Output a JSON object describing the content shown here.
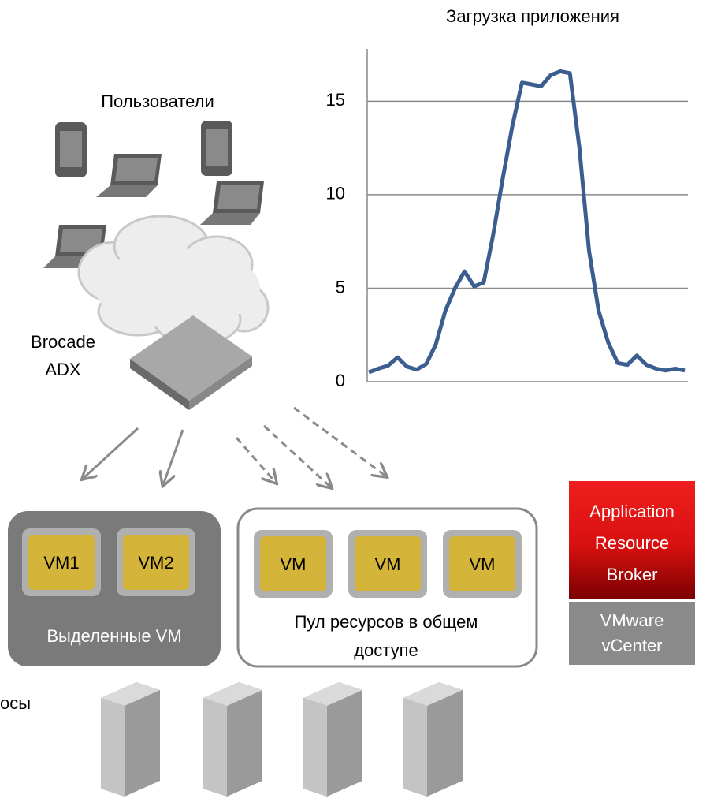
{
  "chart_data": {
    "type": "line",
    "title": "Загрузка приложения",
    "categories": [
      null,
      null,
      null,
      null,
      null,
      null,
      null,
      null,
      null,
      null,
      null,
      null,
      null,
      null,
      null,
      null,
      null,
      null,
      null,
      null,
      null,
      null,
      null,
      null,
      null,
      null,
      null,
      null,
      null,
      null,
      null,
      null,
      null,
      null
    ],
    "values": [
      0.5,
      0.7,
      0.85,
      1.3,
      0.8,
      0.65,
      0.95,
      2.0,
      3.8,
      5.0,
      5.9,
      5.1,
      5.3,
      7.9,
      10.9,
      13.7,
      16.0,
      15.9,
      15.8,
      16.4,
      16.6,
      16.5,
      12.5,
      7.0,
      3.8,
      2.1,
      1.0,
      0.9,
      1.4,
      0.9,
      0.7,
      0.6,
      0.7,
      0.6
    ],
    "color": "#3b5d8f",
    "ylim": [
      0,
      17.8
    ],
    "yticks": [
      0,
      5,
      10,
      15
    ],
    "grid": true
  },
  "users": {
    "label": "Пользователи"
  },
  "adx": {
    "lines": [
      "Brocade",
      "ADX"
    ]
  },
  "dedicated": {
    "vms": [
      "VM1",
      "VM2"
    ],
    "label": "Выделенные VM"
  },
  "shared": {
    "vms": [
      "VM",
      "VM",
      "VM"
    ],
    "label_lines": [
      "Пул ресурсов в общем",
      "доступе"
    ]
  },
  "broker": {
    "lines": [
      "Application",
      "Resource",
      "Broker"
    ]
  },
  "vcenter": {
    "lines": [
      "VMware",
      "vCenter"
    ]
  },
  "hosts": {
    "label": "осы"
  }
}
